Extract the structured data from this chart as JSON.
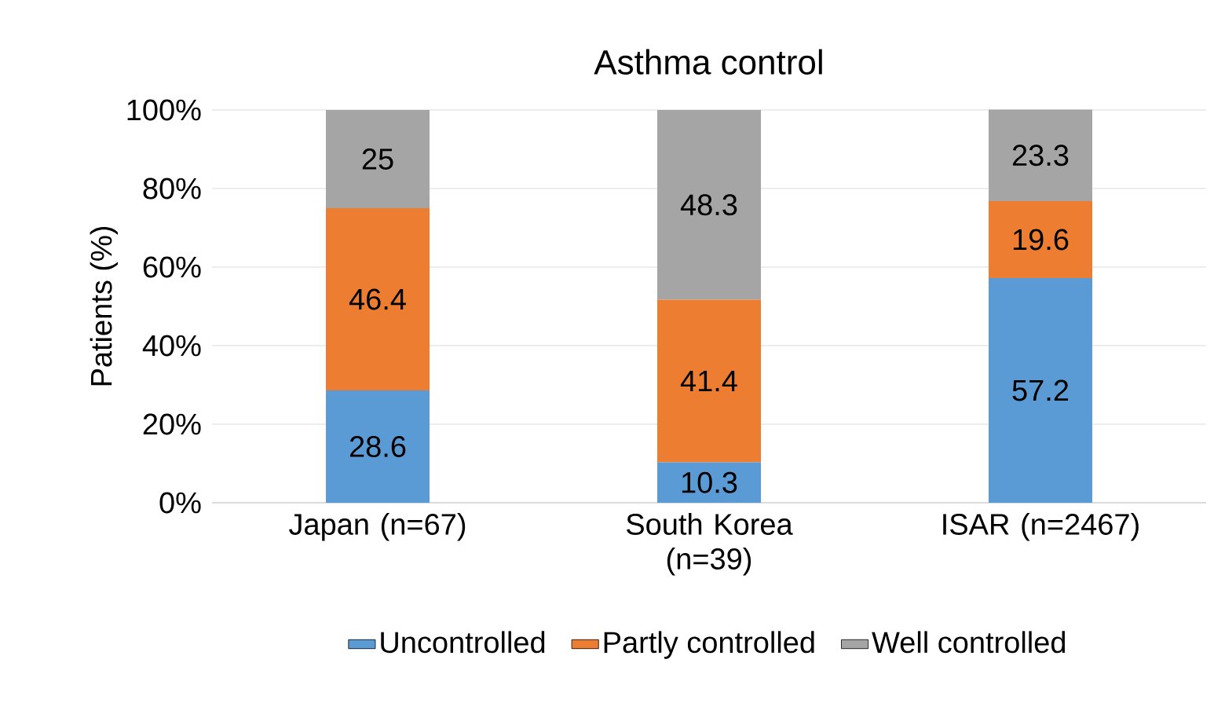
{
  "chart_data": {
    "type": "bar",
    "stacked": true,
    "title": "Asthma control",
    "ylabel": "Patients (%)",
    "categories": [
      "Japan (n=67)",
      "South Korea (n=39)",
      "ISAR (n=2467)"
    ],
    "series": [
      {
        "name": "Uncontrolled",
        "color": "#5b9bd5",
        "values": [
          28.6,
          10.3,
          57.2
        ]
      },
      {
        "name": "Partly controlled",
        "color": "#ed7d31",
        "values": [
          46.4,
          41.4,
          19.6
        ]
      },
      {
        "name": "Well controlled",
        "color": "#a5a5a5",
        "values": [
          25,
          48.3,
          23.3
        ]
      }
    ],
    "ylim": [
      0,
      100
    ],
    "yticks": [
      {
        "value": 0,
        "label": "0%"
      },
      {
        "value": 20,
        "label": "20%"
      },
      {
        "value": 40,
        "label": "40%"
      },
      {
        "value": 60,
        "label": "60%"
      },
      {
        "value": 80,
        "label": "80%"
      },
      {
        "value": 100,
        "label": "100%"
      }
    ],
    "grid": "y",
    "legend": "bottom",
    "data_labels": true
  }
}
